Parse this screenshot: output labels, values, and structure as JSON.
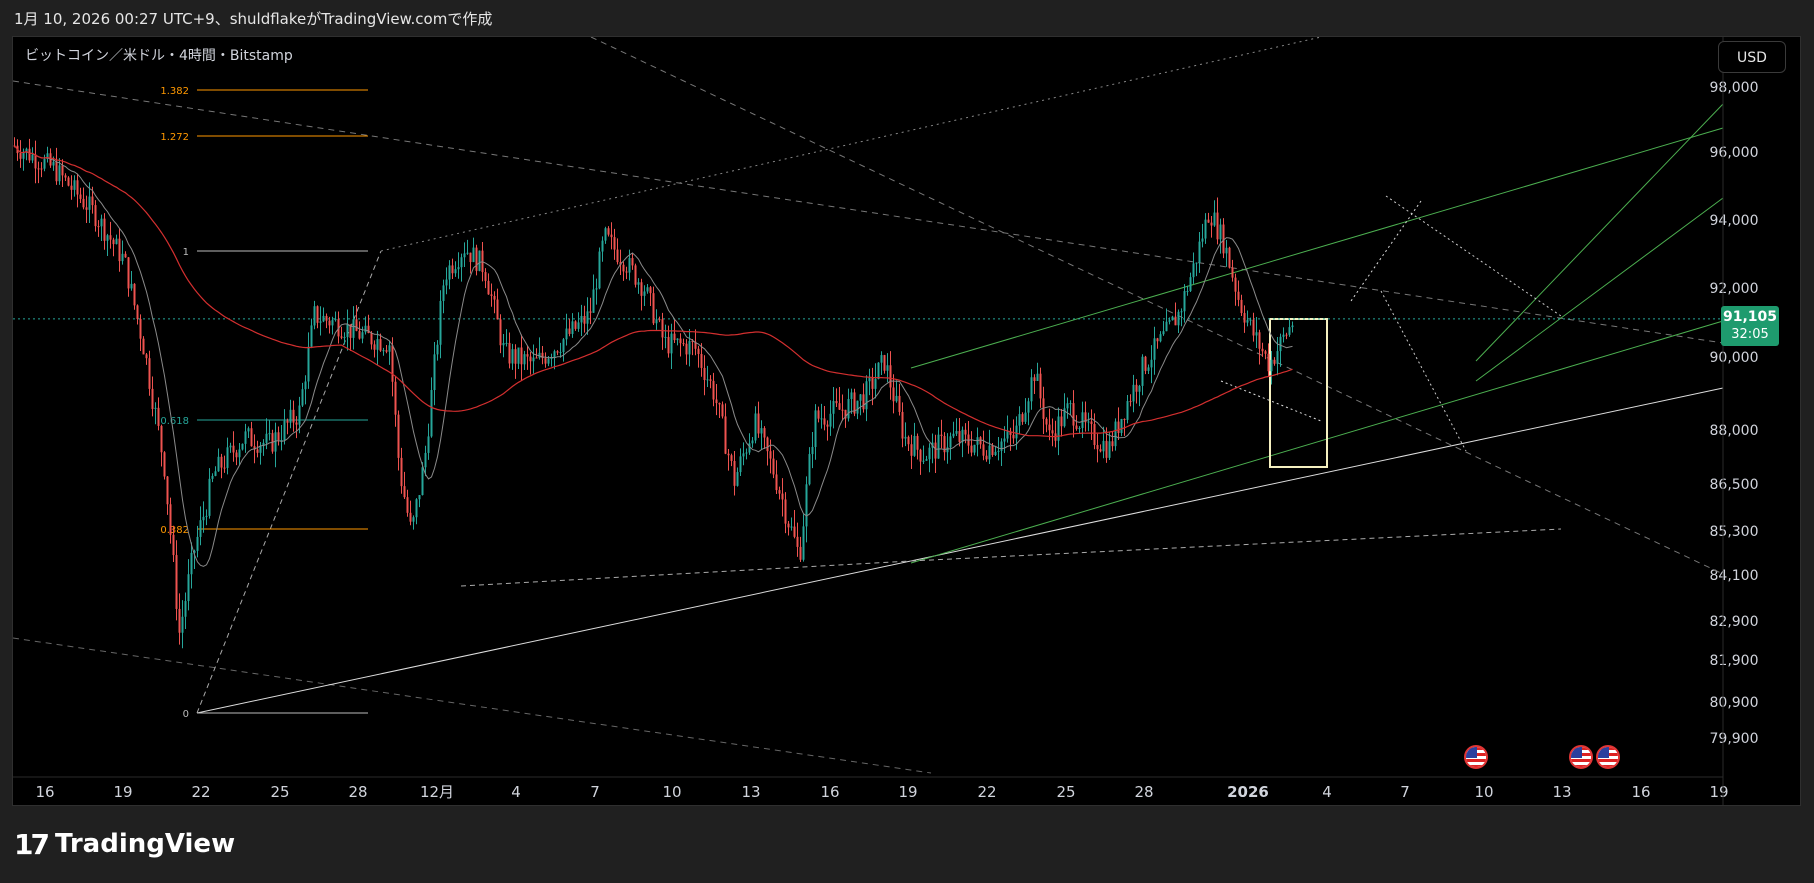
{
  "header": {
    "caption": "1月 10, 2026 00:27 UTC+9、shuldflakeがTradingView.comで作成"
  },
  "chart": {
    "symbol_title": "ビットコイン／米ドル・4時間・Bitstamp",
    "currency": "USD",
    "last_price": "91,105",
    "countdown": "32:05"
  },
  "fib_levels": [
    "1.382",
    "1.272",
    "1",
    "0.618",
    "0.382",
    "0"
  ],
  "colors": {
    "up": "#26a69a",
    "down": "#ef5350",
    "ma_long": "#d32f2f",
    "ma_short": "#8a8a8a",
    "channel": "#4caf50",
    "fib": "#ff9800",
    "last_price": "#1e9b6e"
  },
  "chart_data": {
    "type": "candlestick",
    "y_axis_labels": [
      "98,000",
      "96,000",
      "94,000",
      "92,000",
      "90,000",
      "88,000",
      "86,500",
      "85,300",
      "84,100",
      "82,900",
      "81,900",
      "80,900",
      "79,900"
    ],
    "x_axis_labels": [
      "16",
      "19",
      "22",
      "25",
      "28",
      "12月",
      "4",
      "7",
      "10",
      "13",
      "16",
      "19",
      "22",
      "25",
      "28",
      "2026",
      "4",
      "7",
      "10",
      "13",
      "16",
      "19"
    ],
    "x_axis_bold": "2026",
    "last_price": 91105,
    "close_path": [
      {
        "x": 0,
        "p": 96200
      },
      {
        "x": 40,
        "p": 95500
      },
      {
        "x": 80,
        "p": 94200
      },
      {
        "x": 110,
        "p": 92800
      },
      {
        "x": 130,
        "p": 90200
      },
      {
        "x": 150,
        "p": 87000
      },
      {
        "x": 165,
        "p": 82600
      },
      {
        "x": 180,
        "p": 84800
      },
      {
        "x": 200,
        "p": 86800
      },
      {
        "x": 230,
        "p": 87800
      },
      {
        "x": 255,
        "p": 87600
      },
      {
        "x": 285,
        "p": 88500
      },
      {
        "x": 300,
        "p": 91200
      },
      {
        "x": 320,
        "p": 91000
      },
      {
        "x": 350,
        "p": 90600
      },
      {
        "x": 375,
        "p": 90400
      },
      {
        "x": 385,
        "p": 86900
      },
      {
        "x": 397,
        "p": 85200
      },
      {
        "x": 410,
        "p": 87100
      },
      {
        "x": 430,
        "p": 92400
      },
      {
        "x": 450,
        "p": 93200
      },
      {
        "x": 470,
        "p": 92600
      },
      {
        "x": 490,
        "p": 90100
      },
      {
        "x": 520,
        "p": 89800
      },
      {
        "x": 545,
        "p": 90400
      },
      {
        "x": 575,
        "p": 91200
      },
      {
        "x": 590,
        "p": 93500
      },
      {
        "x": 610,
        "p": 92800
      },
      {
        "x": 630,
        "p": 92000
      },
      {
        "x": 650,
        "p": 90400
      },
      {
        "x": 680,
        "p": 90300
      },
      {
        "x": 700,
        "p": 89000
      },
      {
        "x": 720,
        "p": 86600
      },
      {
        "x": 740,
        "p": 88200
      },
      {
        "x": 760,
        "p": 86800
      },
      {
        "x": 785,
        "p": 84600
      },
      {
        "x": 800,
        "p": 88300
      },
      {
        "x": 830,
        "p": 88600
      },
      {
        "x": 850,
        "p": 88900
      },
      {
        "x": 870,
        "p": 89900
      },
      {
        "x": 890,
        "p": 87800
      },
      {
        "x": 910,
        "p": 87300
      },
      {
        "x": 940,
        "p": 87800
      },
      {
        "x": 970,
        "p": 87500
      },
      {
        "x": 1000,
        "p": 87800
      },
      {
        "x": 1020,
        "p": 89600
      },
      {
        "x": 1035,
        "p": 87800
      },
      {
        "x": 1055,
        "p": 88600
      },
      {
        "x": 1075,
        "p": 87900
      },
      {
        "x": 1095,
        "p": 87500
      },
      {
        "x": 1110,
        "p": 88600
      },
      {
        "x": 1130,
        "p": 89800
      },
      {
        "x": 1150,
        "p": 90600
      },
      {
        "x": 1165,
        "p": 91300
      },
      {
        "x": 1180,
        "p": 92700
      },
      {
        "x": 1195,
        "p": 94300
      },
      {
        "x": 1210,
        "p": 93300
      },
      {
        "x": 1225,
        "p": 91600
      },
      {
        "x": 1240,
        "p": 90600
      },
      {
        "x": 1255,
        "p": 89800
      },
      {
        "x": 1270,
        "p": 90600
      },
      {
        "x": 1280,
        "p": 91100
      }
    ]
  },
  "footer": {
    "brand": "TradingView",
    "logo_mark": "17"
  }
}
